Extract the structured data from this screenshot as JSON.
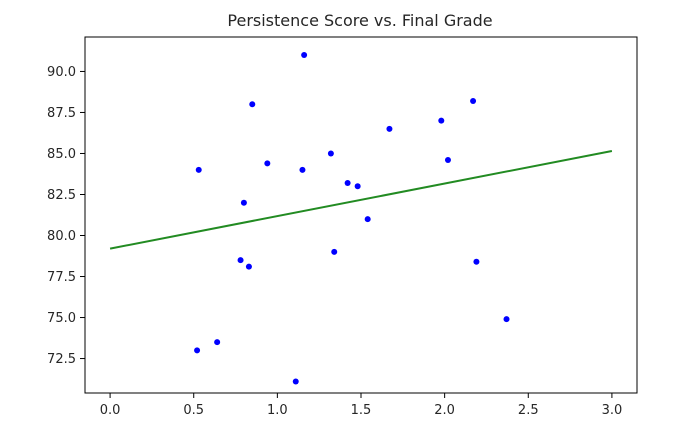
{
  "chart_data": {
    "type": "scatter",
    "title": "Persistence Score vs. Final Grade",
    "xlabel": "",
    "ylabel": "",
    "xlim": [
      -0.15,
      3.15
    ],
    "ylim": [
      70.4,
      92.1
    ],
    "xticks": [
      0.0,
      0.5,
      1.0,
      1.5,
      2.0,
      2.5,
      3.0
    ],
    "xtick_labels": [
      "0.0",
      "0.5",
      "1.0",
      "1.5",
      "2.0",
      "2.5",
      "3.0"
    ],
    "yticks": [
      72.5,
      75.0,
      77.5,
      80.0,
      82.5,
      85.0,
      87.5,
      90.0
    ],
    "ytick_labels": [
      "72.5",
      "75.0",
      "77.5",
      "80.0",
      "82.5",
      "85.0",
      "87.5",
      "90.0"
    ],
    "grid": false,
    "series": [
      {
        "kind": "scatter",
        "color": "#0000ff",
        "points": [
          {
            "x": 0.52,
            "y": 73.0
          },
          {
            "x": 0.53,
            "y": 84.0
          },
          {
            "x": 0.64,
            "y": 73.5
          },
          {
            "x": 0.78,
            "y": 78.5
          },
          {
            "x": 0.8,
            "y": 82.0
          },
          {
            "x": 0.83,
            "y": 78.1
          },
          {
            "x": 0.85,
            "y": 88.0
          },
          {
            "x": 0.94,
            "y": 84.4
          },
          {
            "x": 1.11,
            "y": 71.1
          },
          {
            "x": 1.15,
            "y": 84.0
          },
          {
            "x": 1.16,
            "y": 91.0
          },
          {
            "x": 1.32,
            "y": 85.0
          },
          {
            "x": 1.34,
            "y": 79.0
          },
          {
            "x": 1.42,
            "y": 83.2
          },
          {
            "x": 1.48,
            "y": 83.0
          },
          {
            "x": 1.54,
            "y": 81.0
          },
          {
            "x": 1.67,
            "y": 86.5
          },
          {
            "x": 1.98,
            "y": 87.0
          },
          {
            "x": 2.02,
            "y": 84.6
          },
          {
            "x": 2.17,
            "y": 88.2
          },
          {
            "x": 2.19,
            "y": 78.4
          },
          {
            "x": 2.37,
            "y": 74.9
          }
        ]
      },
      {
        "kind": "line",
        "color": "#228b22",
        "points": [
          {
            "x": 0.0,
            "y": 79.2
          },
          {
            "x": 3.0,
            "y": 85.15
          }
        ]
      }
    ]
  }
}
